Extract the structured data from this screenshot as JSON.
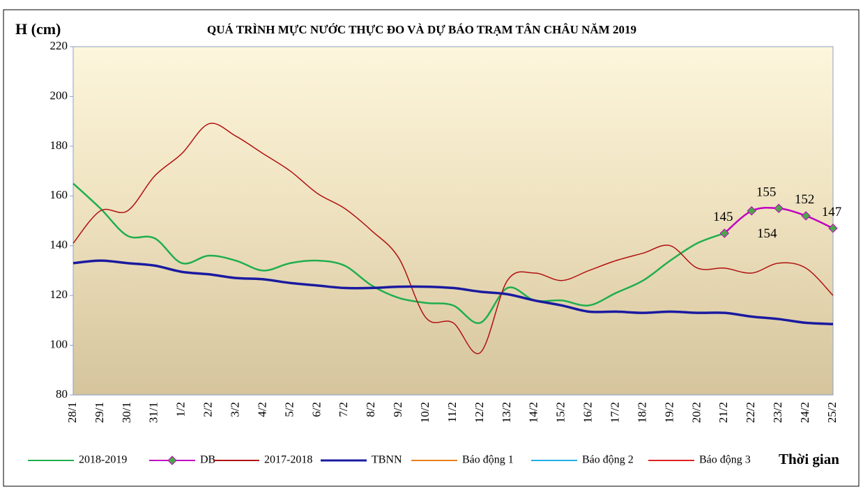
{
  "chart_data": {
    "type": "line",
    "title": "QUÁ TRÌNH MỰC NƯỚC THỰC ĐO VÀ DỰ BÁO TRẠM TÂN CHÂU NĂM 2019",
    "y_label": "H (cm)",
    "x_label": "Thời gian",
    "categories": [
      "28/1",
      "29/1",
      "30/1",
      "31/1",
      "1/2",
      "2/2",
      "3/2",
      "4/2",
      "5/2",
      "6/2",
      "7/2",
      "8/2",
      "9/2",
      "10/2",
      "11/2",
      "12/2",
      "13/2",
      "14/2",
      "15/2",
      "16/2",
      "17/2",
      "18/2",
      "19/2",
      "20/2",
      "21/2",
      "22/2",
      "23/2",
      "24/2",
      "25/2"
    ],
    "ylim": [
      80,
      220
    ],
    "yticks": [
      80,
      100,
      120,
      140,
      160,
      180,
      200,
      220
    ],
    "series": [
      {
        "name": "2018-2019",
        "color": "#1fae4e",
        "values": [
          165,
          155,
          144,
          143,
          133,
          136,
          134,
          130,
          133,
          134,
          132,
          124,
          119,
          117,
          116,
          109,
          123,
          118,
          118,
          116,
          121,
          126,
          134,
          141,
          145,
          null,
          null,
          null,
          null
        ]
      },
      {
        "name": "DB",
        "color": "#c000c0",
        "marker": "diamond",
        "marker_color": "#4aa84a",
        "values": [
          null,
          null,
          null,
          null,
          null,
          null,
          null,
          null,
          null,
          null,
          null,
          null,
          null,
          null,
          null,
          null,
          null,
          null,
          null,
          null,
          null,
          null,
          null,
          null,
          145,
          154,
          155,
          152,
          147
        ]
      },
      {
        "name": "2017-2018",
        "color": "#b01010",
        "values": [
          141,
          154,
          154,
          168,
          177,
          189,
          184,
          177,
          170,
          161,
          155,
          146,
          135,
          111,
          109,
          97,
          126,
          129,
          126,
          130,
          134,
          137,
          140,
          131,
          131,
          129,
          133,
          131,
          120
        ]
      },
      {
        "name": "TBNN",
        "color": "#1a1aa0",
        "values": [
          133,
          134,
          133,
          132,
          129.5,
          128.5,
          127,
          126.5,
          125,
          124,
          123,
          123,
          123.5,
          123.5,
          123,
          121.5,
          120.5,
          118,
          116,
          113.5,
          113.5,
          113,
          113.5,
          113,
          113,
          111.5,
          110.5,
          109,
          108.5
        ]
      },
      {
        "name": "Báo động 1",
        "color": "#e8801a"
      },
      {
        "name": "Báo động 2",
        "color": "#20b0e8"
      },
      {
        "name": "Báo động 3",
        "color": "#e02020"
      }
    ]
  }
}
